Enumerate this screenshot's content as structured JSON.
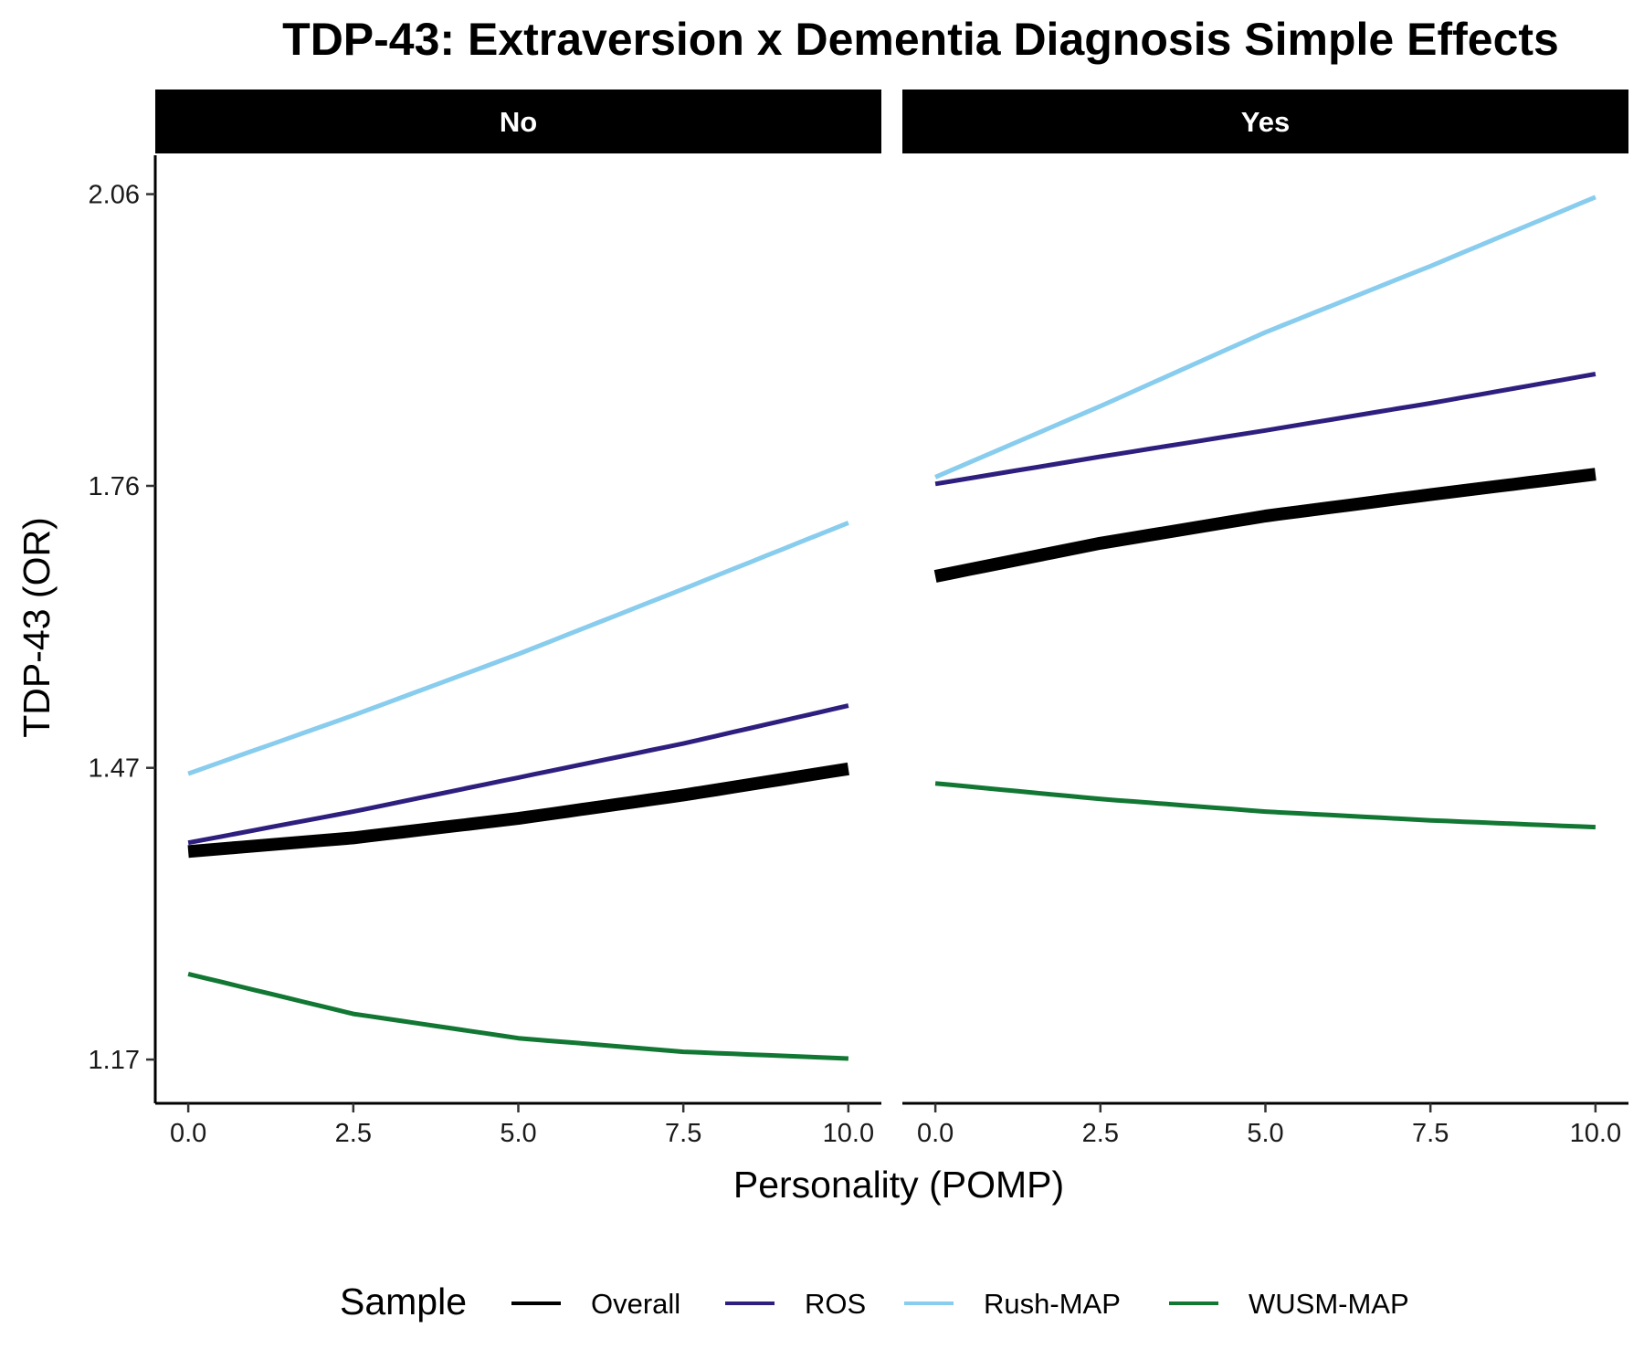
{
  "chart_data": {
    "type": "line",
    "title": "TDP-43: Extraversion x Dementia Diagnosis Simple Effects",
    "xlabel": "Personality (POMP)",
    "ylabel": "TDP-43 (OR)",
    "xlim": [
      -0.5,
      10.5
    ],
    "ylim": [
      1.125,
      2.1
    ],
    "x_ticks": [
      0,
      2.5,
      5,
      7.5,
      10
    ],
    "x_tick_labels": [
      "0.0",
      "2.5",
      "5.0",
      "7.5",
      "10.0"
    ],
    "y_ticks": [
      1.17,
      1.47,
      1.76,
      2.06
    ],
    "y_tick_labels": [
      "1.17",
      "1.47",
      "1.76",
      "2.06"
    ],
    "grid": false,
    "legend": {
      "title": "Sample",
      "position": "bottom",
      "entries": [
        "Overall",
        "ROS",
        "Rush-MAP",
        "WUSM-MAP"
      ]
    },
    "facets": [
      {
        "label": "No",
        "series": [
          {
            "name": "Overall",
            "color": "#000000",
            "x": [
              0,
              2.5,
              5,
              7.5,
              10
            ],
            "y": [
              1.384,
              1.398,
              1.418,
              1.442,
              1.469
            ]
          },
          {
            "name": "ROS",
            "color": "#2e1f7f",
            "x": [
              0,
              2.5,
              5,
              7.5,
              10
            ],
            "y": [
              1.393,
              1.425,
              1.46,
              1.495,
              1.534
            ]
          },
          {
            "name": "Rush-MAP",
            "color": "#88ccee",
            "x": [
              0,
              2.5,
              5,
              7.5,
              10
            ],
            "y": [
              1.464,
              1.524,
              1.587,
              1.654,
              1.722
            ]
          },
          {
            "name": "WUSM-MAP",
            "color": "#117733",
            "x": [
              0,
              2.5,
              5,
              7.5,
              10
            ],
            "y": [
              1.258,
              1.217,
              1.192,
              1.178,
              1.171
            ]
          }
        ]
      },
      {
        "label": "Yes",
        "series": [
          {
            "name": "Overall",
            "color": "#000000",
            "x": [
              0,
              2.5,
              5,
              7.5,
              10
            ],
            "y": [
              1.667,
              1.701,
              1.729,
              1.751,
              1.772
            ]
          },
          {
            "name": "ROS",
            "color": "#2e1f7f",
            "x": [
              0,
              2.5,
              5,
              7.5,
              10
            ],
            "y": [
              1.762,
              1.79,
              1.817,
              1.845,
              1.875
            ]
          },
          {
            "name": "Rush-MAP",
            "color": "#88ccee",
            "x": [
              0,
              2.5,
              5,
              7.5,
              10
            ],
            "y": [
              1.769,
              1.842,
              1.918,
              1.986,
              2.057
            ]
          },
          {
            "name": "WUSM-MAP",
            "color": "#117733",
            "x": [
              0,
              2.5,
              5,
              7.5,
              10
            ],
            "y": [
              1.454,
              1.438,
              1.425,
              1.416,
              1.409
            ]
          }
        ]
      }
    ]
  }
}
